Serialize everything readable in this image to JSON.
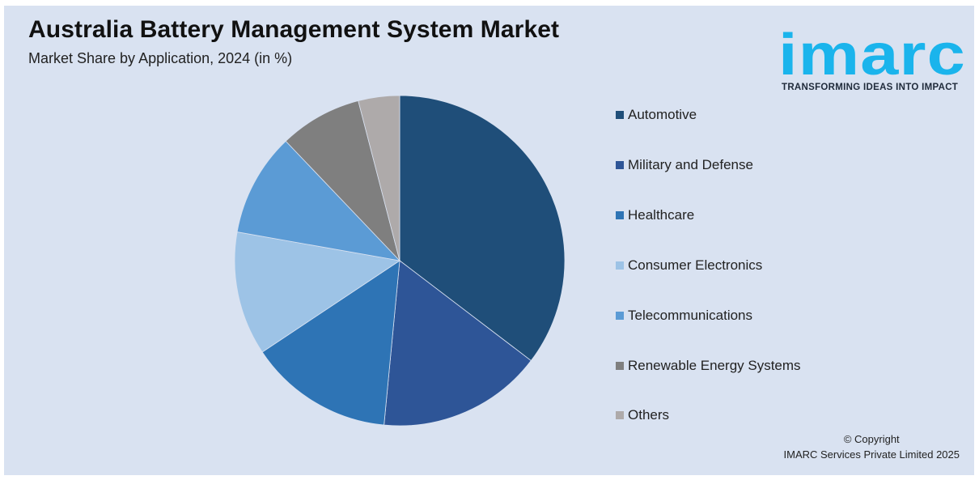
{
  "header": {
    "title": "Australia Battery Management System Market",
    "subtitle": "Market Share by Application, 2024 (in %)"
  },
  "logo": {
    "wordmark": "imarc",
    "tagline": "TRANSFORMING IDEAS INTO IMPACT",
    "color": "#1ab4ec"
  },
  "chart_data": {
    "type": "pie",
    "title": "Australia Battery Management System Market",
    "subtitle": "Market Share by Application, 2024 (in %)",
    "legend_position": "right",
    "start_angle_deg": 0,
    "direction": "clockwise",
    "categories": [
      "Automotive",
      "Military and Defense",
      "Healthcare",
      "Consumer Electronics",
      "Telecommunications",
      "Renewable Energy Systems",
      "Others"
    ],
    "values": [
      35,
      16,
      14,
      12,
      10,
      8,
      4
    ],
    "colors": [
      "#1f4e79",
      "#2e5597",
      "#2e74b5",
      "#9dc3e6",
      "#5b9bd5",
      "#7f7f7f",
      "#aeaaaa"
    ]
  },
  "footer": {
    "copyright_line1": "© Copyright",
    "copyright_line2": "IMARC Services Private Limited 2025"
  }
}
